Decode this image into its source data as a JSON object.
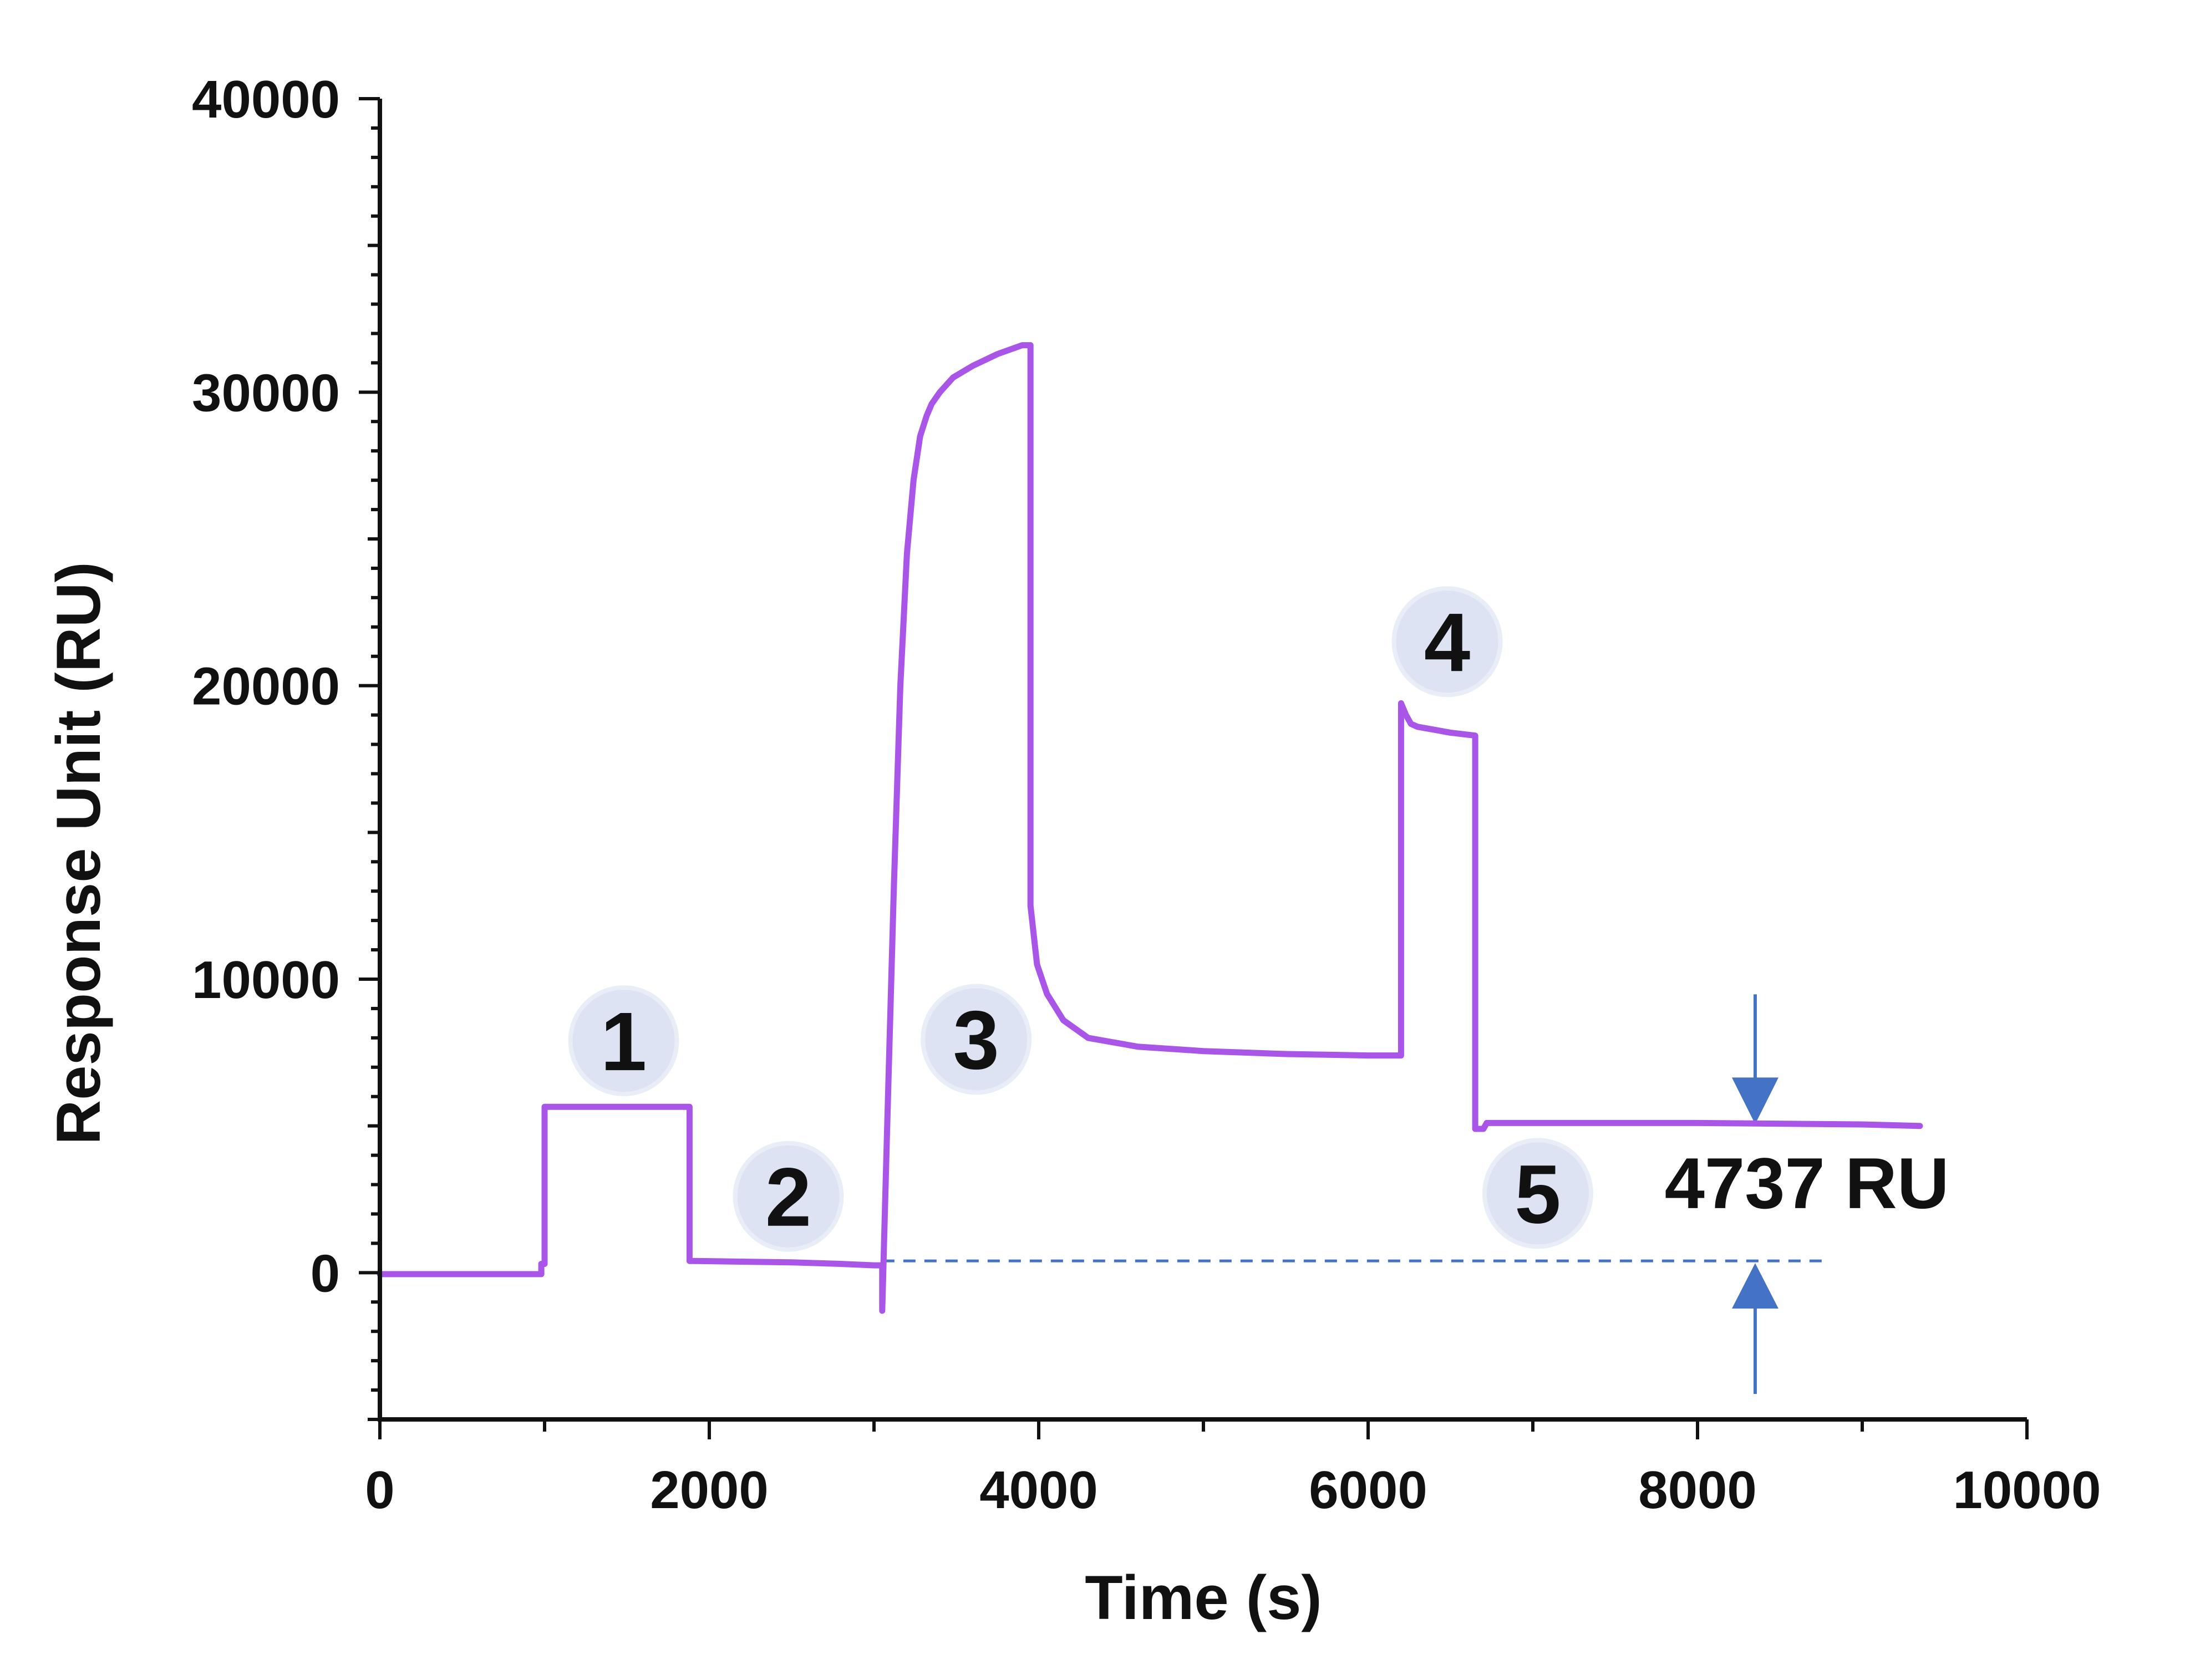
{
  "chart_data": {
    "type": "line",
    "xlabel": "Time (s)",
    "ylabel": "Response Unit (RU)",
    "xlim": [
      0,
      10000
    ],
    "ylim": [
      -5000,
      40000
    ],
    "x_ticks": [
      "0",
      "2000",
      "4000",
      "6000",
      "8000",
      "10000"
    ],
    "y_ticks": [
      "0",
      "10000",
      "20000",
      "30000",
      "40000"
    ],
    "x_tick_values": [
      0,
      2000,
      4000,
      6000,
      8000,
      10000
    ],
    "y_tick_values": [
      0,
      10000,
      20000,
      30000,
      40000
    ],
    "grid": false,
    "colors": {
      "series": "#a855e8",
      "marker_fill": "#dde3f3",
      "arrow": "#4472c4",
      "reference_line": "#4472c4"
    },
    "series": [
      {
        "x": [
          0,
          980,
          980,
          1000,
          1000,
          1880,
          1880,
          1900,
          2500,
          2800,
          3000,
          3050,
          3050,
          3080,
          3120,
          3160,
          3200,
          3240,
          3280,
          3320,
          3350,
          3400,
          3480,
          3600,
          3750,
          3900,
          3950,
          3950,
          3990,
          4050,
          4150,
          4300,
          4600,
          5000,
          5500,
          6000,
          6200,
          6200,
          6230,
          6260,
          6300,
          6400,
          6500,
          6650,
          6650,
          6700,
          6720,
          6800,
          7000,
          8000,
          9000,
          9350
        ],
        "y": [
          -50,
          -50,
          300,
          300,
          5650,
          5650,
          400,
          400,
          350,
          300,
          250,
          250,
          -1300,
          5000,
          13000,
          20000,
          24500,
          27000,
          28500,
          29200,
          29600,
          30000,
          30500,
          30900,
          31300,
          31600,
          31600,
          12500,
          10500,
          9500,
          8600,
          8000,
          7700,
          7550,
          7450,
          7400,
          7400,
          19400,
          19000,
          18700,
          18600,
          18500,
          18400,
          18300,
          4900,
          4900,
          5100,
          5100,
          5100,
          5100,
          5050,
          5000
        ]
      }
    ],
    "markers": [
      {
        "label": "1",
        "x": 1480,
        "y": 7900
      },
      {
        "label": "2",
        "x": 2480,
        "y": 2600
      },
      {
        "label": "3",
        "x": 3620,
        "y": 7950
      },
      {
        "label": "4",
        "x": 6480,
        "y": 21500
      },
      {
        "label": "5",
        "x": 7030,
        "y": 2700
      }
    ],
    "reference_line": {
      "y": 400,
      "x_start": 3050,
      "x_end": 8800
    },
    "difference_annotation": {
      "text": "4737 RU",
      "x": 8350,
      "y_top": 5137,
      "y_bottom": 400
    }
  }
}
